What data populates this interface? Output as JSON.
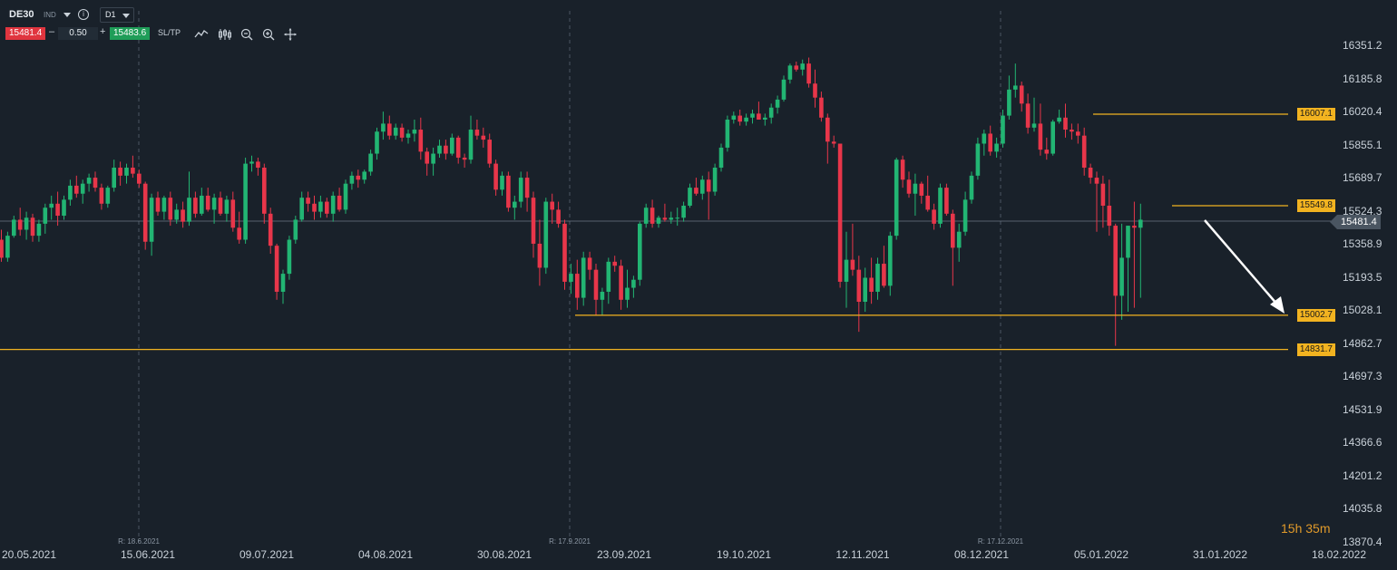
{
  "toolbar": {
    "symbol": "DE30",
    "market": "IND",
    "info_icon": "info-circle-icon",
    "timeframe": "D1",
    "sell_price": "15481.4",
    "lot_minus": "–",
    "lot_size": "0.50",
    "lot_plus": "+",
    "buy_price": "15483.6",
    "sltp_label": "SL/TP",
    "icons": [
      "line-chart-icon",
      "candles-icon",
      "zoom-out-icon",
      "zoom-in-icon",
      "move-icon"
    ]
  },
  "price_axis": {
    "ticks": [
      "16351.2",
      "16185.8",
      "16020.4",
      "15855.1",
      "15689.7",
      "15524.3",
      "15358.9",
      "15193.5",
      "15028.1",
      "14862.7",
      "14697.3",
      "14531.9",
      "14366.6",
      "14201.2",
      "14035.8",
      "13870.4"
    ],
    "current_price": "15481.4"
  },
  "levels": [
    {
      "label": "16007.1",
      "value": 16007.1
    },
    {
      "label": "15549.8",
      "value": 15549.8
    },
    {
      "label": "15002.7",
      "value": 15002.7
    },
    {
      "label": "14831.7",
      "value": 14831.7
    }
  ],
  "time_axis": {
    "ticks": [
      "20.05.2021",
      "15.06.2021",
      "09.07.2021",
      "04.08.2021",
      "30.08.2021",
      "23.09.2021",
      "19.10.2021",
      "12.11.2021",
      "08.12.2021",
      "05.01.2022",
      "31.01.2022",
      "18.02.2022"
    ],
    "rollover_marks": [
      "R: 18.6.2021",
      "R: 17.9.2021",
      "R: 17.12.2021"
    ]
  },
  "countdown": {
    "hours": "15h",
    "minutes": "35m"
  },
  "colors": {
    "background": "#19212a",
    "bull": "#22b573",
    "bear": "#e8364a",
    "level": "#f2b320",
    "arrow": "#ffffff"
  },
  "chart_data": {
    "type": "candlestick",
    "symbol": "DE30",
    "timeframe": "D1",
    "ylim": [
      13870.4,
      16351.2
    ],
    "horizontal_levels": [
      16007.1,
      15549.8,
      15002.7,
      14831.7
    ],
    "current_price": 15481.4,
    "ohlc": [
      [
        15380,
        15430,
        15270,
        15290
      ],
      [
        15290,
        15420,
        15270,
        15400
      ],
      [
        15400,
        15500,
        15390,
        15480
      ],
      [
        15480,
        15540,
        15400,
        15430
      ],
      [
        15430,
        15520,
        15380,
        15490
      ],
      [
        15490,
        15510,
        15370,
        15400
      ],
      [
        15400,
        15480,
        15370,
        15460
      ],
      [
        15460,
        15560,
        15410,
        15540
      ],
      [
        15540,
        15600,
        15480,
        15560
      ],
      [
        15560,
        15620,
        15450,
        15500
      ],
      [
        15500,
        15600,
        15480,
        15580
      ],
      [
        15580,
        15680,
        15550,
        15650
      ],
      [
        15650,
        15700,
        15590,
        15610
      ],
      [
        15610,
        15680,
        15560,
        15660
      ],
      [
        15660,
        15710,
        15620,
        15690
      ],
      [
        15690,
        15720,
        15620,
        15640
      ],
      [
        15640,
        15660,
        15530,
        15560
      ],
      [
        15560,
        15650,
        15540,
        15640
      ],
      [
        15640,
        15780,
        15620,
        15740
      ],
      [
        15740,
        15770,
        15650,
        15700
      ],
      [
        15700,
        15760,
        15660,
        15740
      ],
      [
        15740,
        15800,
        15690,
        15710
      ],
      [
        15710,
        15730,
        15640,
        15660
      ],
      [
        15660,
        15670,
        15330,
        15370
      ],
      [
        15370,
        15610,
        15300,
        15590
      ],
      [
        15590,
        15620,
        15500,
        15520
      ],
      [
        15520,
        15600,
        15480,
        15590
      ],
      [
        15590,
        15620,
        15450,
        15480
      ],
      [
        15480,
        15560,
        15460,
        15530
      ],
      [
        15530,
        15570,
        15440,
        15470
      ],
      [
        15470,
        15720,
        15450,
        15590
      ],
      [
        15590,
        15620,
        15490,
        15510
      ],
      [
        15510,
        15640,
        15500,
        15600
      ],
      [
        15600,
        15640,
        15520,
        15530
      ],
      [
        15530,
        15610,
        15460,
        15590
      ],
      [
        15590,
        15620,
        15500,
        15510
      ],
      [
        15510,
        15600,
        15470,
        15580
      ],
      [
        15580,
        15620,
        15420,
        15440
      ],
      [
        15440,
        15520,
        15360,
        15380
      ],
      [
        15380,
        15790,
        15360,
        15760
      ],
      [
        15760,
        15800,
        15720,
        15770
      ],
      [
        15770,
        15790,
        15700,
        15740
      ],
      [
        15740,
        15760,
        15460,
        15510
      ],
      [
        15510,
        15540,
        15310,
        15350
      ],
      [
        15350,
        15360,
        15080,
        15120
      ],
      [
        15120,
        15230,
        15060,
        15210
      ],
      [
        15210,
        15400,
        15180,
        15380
      ],
      [
        15380,
        15500,
        15360,
        15480
      ],
      [
        15480,
        15620,
        15470,
        15590
      ],
      [
        15590,
        15620,
        15520,
        15560
      ],
      [
        15560,
        15600,
        15480,
        15520
      ],
      [
        15520,
        15600,
        15490,
        15570
      ],
      [
        15570,
        15590,
        15490,
        15510
      ],
      [
        15510,
        15620,
        15470,
        15600
      ],
      [
        15600,
        15640,
        15520,
        15530
      ],
      [
        15530,
        15680,
        15510,
        15660
      ],
      [
        15660,
        15720,
        15630,
        15700
      ],
      [
        15700,
        15730,
        15640,
        15680
      ],
      [
        15680,
        15730,
        15660,
        15720
      ],
      [
        15720,
        15830,
        15700,
        15810
      ],
      [
        15810,
        15940,
        15780,
        15920
      ],
      [
        15920,
        16020,
        15880,
        15960
      ],
      [
        15960,
        16000,
        15880,
        15900
      ],
      [
        15900,
        15960,
        15880,
        15940
      ],
      [
        15940,
        15960,
        15870,
        15890
      ],
      [
        15890,
        15930,
        15860,
        15910
      ],
      [
        15910,
        15980,
        15870,
        15930
      ],
      [
        15930,
        15990,
        15780,
        15820
      ],
      [
        15820,
        15840,
        15700,
        15760
      ],
      [
        15760,
        15840,
        15700,
        15810
      ],
      [
        15810,
        15880,
        15790,
        15850
      ],
      [
        15850,
        15880,
        15780,
        15810
      ],
      [
        15810,
        15910,
        15800,
        15890
      ],
      [
        15890,
        15900,
        15760,
        15790
      ],
      [
        15790,
        15810,
        15740,
        15780
      ],
      [
        15780,
        16000,
        15760,
        15930
      ],
      [
        15930,
        15980,
        15880,
        15900
      ],
      [
        15900,
        15940,
        15840,
        15880
      ],
      [
        15880,
        15910,
        15740,
        15760
      ],
      [
        15760,
        15780,
        15600,
        15630
      ],
      [
        15630,
        15720,
        15600,
        15700
      ],
      [
        15700,
        15720,
        15520,
        15540
      ],
      [
        15540,
        15600,
        15480,
        15570
      ],
      [
        15570,
        15720,
        15540,
        15690
      ],
      [
        15690,
        15720,
        15520,
        15590
      ],
      [
        15590,
        15620,
        15290,
        15360
      ],
      [
        15360,
        15480,
        15150,
        15240
      ],
      [
        15240,
        15590,
        15210,
        15570
      ],
      [
        15570,
        15610,
        15460,
        15530
      ],
      [
        15530,
        15570,
        15440,
        15460
      ],
      [
        15460,
        15480,
        15130,
        15170
      ],
      [
        15170,
        15260,
        15110,
        15210
      ],
      [
        15210,
        15280,
        15030,
        15090
      ],
      [
        15090,
        15320,
        15050,
        15290
      ],
      [
        15290,
        15320,
        15180,
        15230
      ],
      [
        15230,
        15260,
        15000,
        15080
      ],
      [
        15080,
        15140,
        15000,
        15120
      ],
      [
        15120,
        15290,
        15060,
        15270
      ],
      [
        15270,
        15300,
        15220,
        15250
      ],
      [
        15250,
        15280,
        15030,
        15080
      ],
      [
        15080,
        15230,
        15040,
        15140
      ],
      [
        15140,
        15200,
        15090,
        15180
      ],
      [
        15180,
        15470,
        15150,
        15460
      ],
      [
        15460,
        15560,
        15440,
        15540
      ],
      [
        15540,
        15580,
        15440,
        15460
      ],
      [
        15460,
        15500,
        15440,
        15490
      ],
      [
        15490,
        15560,
        15470,
        15480
      ],
      [
        15480,
        15520,
        15460,
        15490
      ],
      [
        15490,
        15540,
        15450,
        15490
      ],
      [
        15490,
        15570,
        15470,
        15550
      ],
      [
        15550,
        15660,
        15540,
        15640
      ],
      [
        15640,
        15690,
        15600,
        15610
      ],
      [
        15610,
        15700,
        15580,
        15680
      ],
      [
        15680,
        15720,
        15480,
        15620
      ],
      [
        15620,
        15760,
        15600,
        15740
      ],
      [
        15740,
        15860,
        15720,
        15840
      ],
      [
        15840,
        16000,
        15820,
        15980
      ],
      [
        15980,
        16020,
        15960,
        16000
      ],
      [
        16000,
        16030,
        15950,
        15970
      ],
      [
        15970,
        16010,
        15950,
        15990
      ],
      [
        15990,
        16030,
        15960,
        16010
      ],
      [
        16010,
        16070,
        15980,
        15980
      ],
      [
        15980,
        16010,
        15950,
        15990
      ],
      [
        15990,
        16060,
        15960,
        16040
      ],
      [
        16040,
        16100,
        16010,
        16080
      ],
      [
        16080,
        16200,
        16070,
        16180
      ],
      [
        16180,
        16260,
        16160,
        16250
      ],
      [
        16250,
        16270,
        16220,
        16230
      ],
      [
        16230,
        16280,
        16200,
        16260
      ],
      [
        16260,
        16290,
        16140,
        16160
      ],
      [
        16160,
        16230,
        16040,
        16090
      ],
      [
        16090,
        16120,
        15970,
        15990
      ],
      [
        15990,
        16010,
        15760,
        15870
      ],
      [
        15870,
        15900,
        15840,
        15860
      ],
      [
        15860,
        15860,
        15140,
        15170
      ],
      [
        15170,
        15420,
        15040,
        15280
      ],
      [
        15280,
        15460,
        15200,
        15230
      ],
      [
        15230,
        15300,
        14920,
        15070
      ],
      [
        15070,
        15240,
        15020,
        15190
      ],
      [
        15190,
        15290,
        15060,
        15120
      ],
      [
        15120,
        15290,
        15080,
        15260
      ],
      [
        15260,
        15350,
        15140,
        15150
      ],
      [
        15150,
        15420,
        15100,
        15400
      ],
      [
        15400,
        15790,
        15380,
        15780
      ],
      [
        15780,
        15800,
        15640,
        15680
      ],
      [
        15680,
        15720,
        15590,
        15610
      ],
      [
        15610,
        15710,
        15500,
        15660
      ],
      [
        15660,
        15670,
        15560,
        15600
      ],
      [
        15600,
        15700,
        15520,
        15530
      ],
      [
        15530,
        15560,
        15430,
        15460
      ],
      [
        15460,
        15660,
        15440,
        15640
      ],
      [
        15640,
        15660,
        15500,
        15510
      ],
      [
        15510,
        15530,
        15150,
        15340
      ],
      [
        15340,
        15460,
        15270,
        15420
      ],
      [
        15420,
        15620,
        15400,
        15580
      ],
      [
        15580,
        15720,
        15560,
        15700
      ],
      [
        15700,
        15890,
        15680,
        15860
      ],
      [
        15860,
        15930,
        15800,
        15910
      ],
      [
        15910,
        15950,
        15800,
        15820
      ],
      [
        15820,
        15890,
        15790,
        15860
      ],
      [
        15860,
        16030,
        15840,
        16000
      ],
      [
        16000,
        16200,
        15980,
        16130
      ],
      [
        16130,
        16260,
        16090,
        16150
      ],
      [
        16150,
        16170,
        16020,
        16060
      ],
      [
        16060,
        16110,
        15910,
        15940
      ],
      [
        15940,
        16090,
        15920,
        15960
      ],
      [
        15960,
        16060,
        15800,
        15830
      ],
      [
        15830,
        15890,
        15780,
        15810
      ],
      [
        15810,
        15980,
        15800,
        15970
      ],
      [
        15970,
        16030,
        15960,
        15990
      ],
      [
        15990,
        16060,
        15890,
        15930
      ],
      [
        15930,
        15960,
        15880,
        15920
      ],
      [
        15920,
        15960,
        15860,
        15900
      ],
      [
        15900,
        15940,
        15700,
        15740
      ],
      [
        15740,
        15760,
        15660,
        15690
      ],
      [
        15690,
        15720,
        15420,
        15660
      ],
      [
        15660,
        15700,
        15440,
        15550
      ],
      [
        15550,
        15680,
        15400,
        15450
      ],
      [
        15450,
        15460,
        14850,
        15100
      ],
      [
        15100,
        15460,
        14980,
        15290
      ],
      [
        15290,
        15450,
        15020,
        15450
      ],
      [
        15450,
        15570,
        15040,
        15440
      ],
      [
        15440,
        15560,
        15090,
        15480
      ]
    ]
  }
}
